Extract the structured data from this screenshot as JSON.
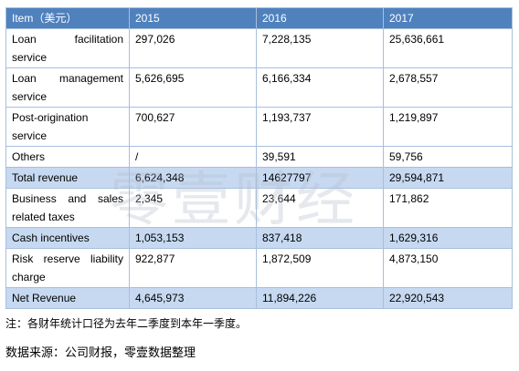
{
  "table": {
    "header": [
      "Item（美元）",
      "2015",
      "2016",
      "2017"
    ],
    "rows": [
      [
        "Loan facilitation service",
        "297,026",
        "7,228,135",
        "25,636,661"
      ],
      [
        "Loan management service",
        "5,626,695",
        "6,166,334",
        "2,678,557"
      ],
      [
        "Post-origination service",
        "700,627",
        "1,193,737",
        "1,219,897"
      ],
      [
        "Others",
        "/",
        "39,591",
        "59,756"
      ],
      [
        "Total revenue",
        "6,624,348",
        "14627797",
        "29,594,871"
      ],
      [
        "Business and sales related taxes",
        "2,345",
        "23,644",
        "171,862"
      ],
      [
        "Cash incentives",
        "1,053,153",
        "837,418",
        "1,629,316"
      ],
      [
        "Risk reserve liability charge",
        "922,877",
        "1,872,509",
        "4,873,150"
      ],
      [
        "Net Revenue",
        "4,645,973",
        "11,894,226",
        "22,920,543"
      ]
    ]
  },
  "watermark": "零壹财经",
  "note": "注：各财年统计口径为去年二季度到本年一季度。",
  "source": "数据来源：公司财报，零壹数据整理"
}
